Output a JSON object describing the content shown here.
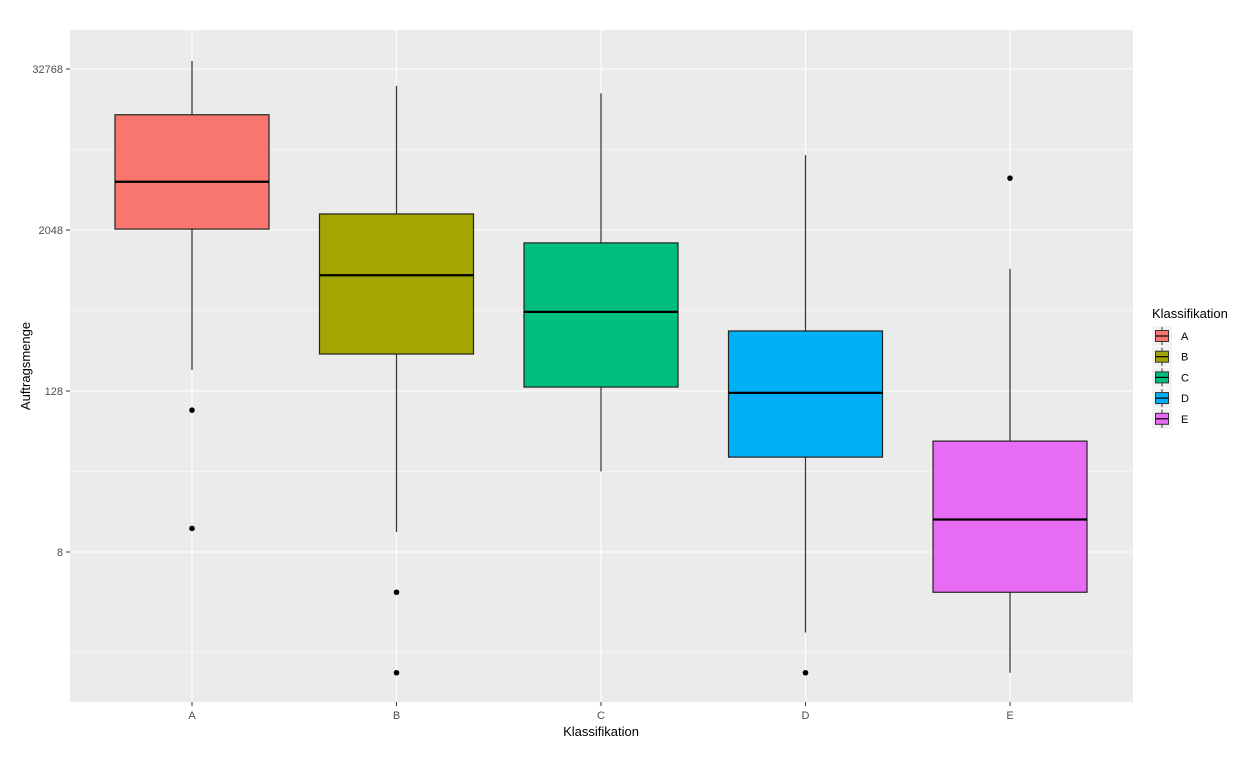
{
  "chart_data": {
    "type": "box",
    "title": "",
    "xlabel": "Klassifikation",
    "ylabel": "Auftragsmenge",
    "y_scale": "log2",
    "y_ticks": [
      8,
      128,
      2048,
      32768
    ],
    "y_tick_labels": [
      "8",
      "128",
      "2048",
      "32768"
    ],
    "ylim": [
      0.6,
      55000
    ],
    "grid": true,
    "legend_position": "right",
    "legend_title": "Klassifikation",
    "categories": [
      "A",
      "B",
      "C",
      "D",
      "E"
    ],
    "series": [
      {
        "name": "A",
        "color": "#F8766D",
        "whisker_low": 184,
        "q1": 2080,
        "median": 4700,
        "q3": 14900,
        "whisker_high": 37600,
        "outliers": [
          92,
          12
        ]
      },
      {
        "name": "B",
        "color": "#A3A500",
        "whisker_low": 11.3,
        "q1": 242,
        "median": 940,
        "q3": 2700,
        "whisker_high": 24500,
        "outliers": [
          4,
          1
        ]
      },
      {
        "name": "C",
        "color": "#00BF7D",
        "whisker_low": 32,
        "q1": 137,
        "median": 500,
        "q3": 1640,
        "whisker_high": 21600,
        "outliers": []
      },
      {
        "name": "D",
        "color": "#00B0F6",
        "whisker_low": 2,
        "q1": 41,
        "median": 124,
        "q3": 360,
        "whisker_high": 7430,
        "outliers": [
          1
        ]
      },
      {
        "name": "E",
        "color": "#E76BF3",
        "whisker_low": 1,
        "q1": 4,
        "median": 14,
        "q3": 54,
        "whisker_high": 1050,
        "outliers": [
          5000
        ]
      }
    ]
  },
  "colors": {
    "panel_bg": "#EBEBEB",
    "grid_major": "#FFFFFF",
    "outline": "#000000",
    "whisker": "#333333"
  }
}
